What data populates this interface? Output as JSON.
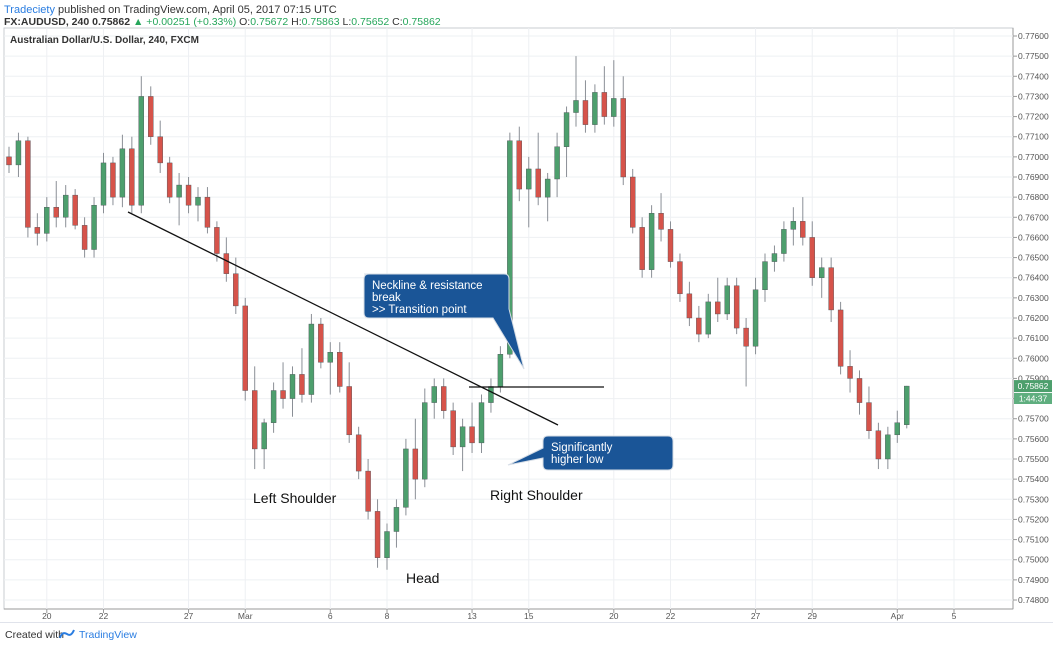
{
  "header": {
    "author": "Tradeciety",
    "published_text": "published on TradingView.com, April 05, 2017 07:15 UTC",
    "symbol": "FX:AUDUSD, 240",
    "last_price": "0.75862",
    "change": "▲ +0.00251 (+0.33%)",
    "ohlc": [
      {
        "label": "O:",
        "value": "0.75672"
      },
      {
        "label": "H:",
        "value": "0.75863"
      },
      {
        "label": "L:",
        "value": "0.75652"
      },
      {
        "label": "C:",
        "value": "0.75862"
      }
    ]
  },
  "footer": {
    "created_with": "Created with",
    "brand": "TradingView"
  },
  "colors": {
    "bull": "#4d9f6d",
    "bear": "#d6534a",
    "callout": "#1a5597",
    "grid": "#eef0f3",
    "axis": "#555555",
    "price_tag": "#4d9f6d"
  },
  "chart_data": {
    "type": "candlestick",
    "title": "Australian Dollar/U.S. Dollar, 240, FXCM",
    "ylim": [
      0.7475,
      0.7765
    ],
    "y_ticks": [
      "0.77600",
      "0.77500",
      "0.77400",
      "0.77300",
      "0.77200",
      "0.77100",
      "0.77000",
      "0.76900",
      "0.76800",
      "0.76700",
      "0.76600",
      "0.76500",
      "0.76400",
      "0.76300",
      "0.76200",
      "0.76100",
      "0.76000",
      "0.75900",
      "0.75800",
      "0.75700",
      "0.75600",
      "0.75500",
      "0.75400",
      "0.75300",
      "0.75200",
      "0.75100",
      "0.75000",
      "0.74900",
      "0.74800"
    ],
    "x_ticks": [
      {
        "label": "20",
        "index": 4
      },
      {
        "label": "22",
        "index": 10
      },
      {
        "label": "27",
        "index": 19
      },
      {
        "label": "Mar",
        "index": 25
      },
      {
        "label": "6",
        "index": 34
      },
      {
        "label": "8",
        "index": 40
      },
      {
        "label": "13",
        "index": 49
      },
      {
        "label": "15",
        "index": 55
      },
      {
        "label": "20",
        "index": 64
      },
      {
        "label": "22",
        "index": 70
      },
      {
        "label": "27",
        "index": 79
      },
      {
        "label": "29",
        "index": 85
      },
      {
        "label": "Apr",
        "index": 94
      },
      {
        "label": "5",
        "index": 100
      }
    ],
    "last_price_tag": "0.75862",
    "countdown_tag": "1:44:37",
    "candles": [
      [
        0.77,
        0.7705,
        0.7692,
        0.7696
      ],
      [
        0.7696,
        0.7712,
        0.769,
        0.7708
      ],
      [
        0.7708,
        0.771,
        0.766,
        0.7665
      ],
      [
        0.7665,
        0.7672,
        0.7656,
        0.7662
      ],
      [
        0.7662,
        0.768,
        0.7658,
        0.7675
      ],
      [
        0.7675,
        0.7688,
        0.7665,
        0.767
      ],
      [
        0.767,
        0.7686,
        0.7665,
        0.7681
      ],
      [
        0.7681,
        0.7684,
        0.7664,
        0.7666
      ],
      [
        0.7666,
        0.767,
        0.765,
        0.7654
      ],
      [
        0.7654,
        0.768,
        0.765,
        0.7676
      ],
      [
        0.7676,
        0.7702,
        0.7672,
        0.7697
      ],
      [
        0.7697,
        0.77,
        0.7676,
        0.768
      ],
      [
        0.768,
        0.7711,
        0.7675,
        0.7704
      ],
      [
        0.7704,
        0.771,
        0.7672,
        0.7676
      ],
      [
        0.7676,
        0.774,
        0.7672,
        0.773
      ],
      [
        0.773,
        0.7735,
        0.7706,
        0.771
      ],
      [
        0.771,
        0.7718,
        0.7692,
        0.7697
      ],
      [
        0.7697,
        0.77,
        0.7677,
        0.768
      ],
      [
        0.768,
        0.7692,
        0.7666,
        0.7686
      ],
      [
        0.7686,
        0.769,
        0.7672,
        0.7676
      ],
      [
        0.7676,
        0.7685,
        0.7668,
        0.768
      ],
      [
        0.768,
        0.7685,
        0.7662,
        0.7665
      ],
      [
        0.7665,
        0.7668,
        0.7648,
        0.7652
      ],
      [
        0.7652,
        0.766,
        0.7638,
        0.7642
      ],
      [
        0.7642,
        0.765,
        0.7622,
        0.7626
      ],
      [
        0.7626,
        0.763,
        0.7579,
        0.7584
      ],
      [
        0.7584,
        0.7596,
        0.7545,
        0.7555
      ],
      [
        0.7555,
        0.757,
        0.7545,
        0.7568
      ],
      [
        0.7568,
        0.7588,
        0.7563,
        0.7584
      ],
      [
        0.7584,
        0.7598,
        0.7575,
        0.758
      ],
      [
        0.758,
        0.7596,
        0.7571,
        0.7592
      ],
      [
        0.7592,
        0.7605,
        0.7578,
        0.7582
      ],
      [
        0.7582,
        0.7622,
        0.7578,
        0.7617
      ],
      [
        0.7617,
        0.762,
        0.7595,
        0.7598
      ],
      [
        0.7598,
        0.7608,
        0.7582,
        0.7603
      ],
      [
        0.7603,
        0.7608,
        0.7583,
        0.7586
      ],
      [
        0.7586,
        0.7598,
        0.7558,
        0.7562
      ],
      [
        0.7562,
        0.7566,
        0.754,
        0.7544
      ],
      [
        0.7544,
        0.755,
        0.752,
        0.7524
      ],
      [
        0.7524,
        0.753,
        0.7496,
        0.7501
      ],
      [
        0.7501,
        0.7518,
        0.7495,
        0.7514
      ],
      [
        0.7514,
        0.753,
        0.7506,
        0.7526
      ],
      [
        0.7526,
        0.756,
        0.7522,
        0.7555
      ],
      [
        0.7555,
        0.757,
        0.753,
        0.754
      ],
      [
        0.754,
        0.7585,
        0.7536,
        0.7578
      ],
      [
        0.7578,
        0.759,
        0.757,
        0.7586
      ],
      [
        0.7586,
        0.759,
        0.757,
        0.7574
      ],
      [
        0.7574,
        0.7578,
        0.7552,
        0.7556
      ],
      [
        0.7556,
        0.757,
        0.7544,
        0.7566
      ],
      [
        0.7566,
        0.7578,
        0.7553,
        0.7558
      ],
      [
        0.7558,
        0.7582,
        0.7553,
        0.7578
      ],
      [
        0.7578,
        0.759,
        0.7573,
        0.7586
      ],
      [
        0.7586,
        0.7606,
        0.7583,
        0.7602
      ],
      [
        0.7602,
        0.7712,
        0.76,
        0.7708
      ],
      [
        0.7708,
        0.7715,
        0.7678,
        0.7684
      ],
      [
        0.7684,
        0.77,
        0.7665,
        0.7694
      ],
      [
        0.7694,
        0.7712,
        0.7676,
        0.768
      ],
      [
        0.768,
        0.7692,
        0.7668,
        0.7689
      ],
      [
        0.7689,
        0.7712,
        0.768,
        0.7705
      ],
      [
        0.7705,
        0.7725,
        0.769,
        0.7722
      ],
      [
        0.7722,
        0.775,
        0.7715,
        0.7728
      ],
      [
        0.7728,
        0.7738,
        0.7712,
        0.7716
      ],
      [
        0.7716,
        0.7736,
        0.7712,
        0.7732
      ],
      [
        0.7732,
        0.7745,
        0.7716,
        0.772
      ],
      [
        0.772,
        0.7748,
        0.7715,
        0.7729
      ],
      [
        0.7729,
        0.774,
        0.7686,
        0.769
      ],
      [
        0.769,
        0.7694,
        0.7662,
        0.7665
      ],
      [
        0.7665,
        0.767,
        0.764,
        0.7644
      ],
      [
        0.7644,
        0.7676,
        0.764,
        0.7672
      ],
      [
        0.7672,
        0.7682,
        0.7658,
        0.7664
      ],
      [
        0.7664,
        0.7668,
        0.7645,
        0.7648
      ],
      [
        0.7648,
        0.7652,
        0.7628,
        0.7632
      ],
      [
        0.7632,
        0.7638,
        0.7616,
        0.762
      ],
      [
        0.762,
        0.7626,
        0.7608,
        0.7612
      ],
      [
        0.7612,
        0.7632,
        0.761,
        0.7628
      ],
      [
        0.7628,
        0.764,
        0.7618,
        0.7622
      ],
      [
        0.7622,
        0.764,
        0.7619,
        0.7636
      ],
      [
        0.7636,
        0.764,
        0.7612,
        0.7615
      ],
      [
        0.7615,
        0.762,
        0.7586,
        0.7606
      ],
      [
        0.7606,
        0.764,
        0.7602,
        0.7634
      ],
      [
        0.7634,
        0.7652,
        0.7628,
        0.7648
      ],
      [
        0.7648,
        0.7656,
        0.7643,
        0.7652
      ],
      [
        0.7652,
        0.7668,
        0.7648,
        0.7664
      ],
      [
        0.7664,
        0.7675,
        0.7656,
        0.7668
      ],
      [
        0.7668,
        0.768,
        0.7656,
        0.766
      ],
      [
        0.766,
        0.7668,
        0.7636,
        0.764
      ],
      [
        0.764,
        0.765,
        0.763,
        0.7645
      ],
      [
        0.7645,
        0.765,
        0.7618,
        0.7624
      ],
      [
        0.7624,
        0.7628,
        0.7592,
        0.7596
      ],
      [
        0.7596,
        0.7604,
        0.7583,
        0.759
      ],
      [
        0.759,
        0.7594,
        0.7572,
        0.7578
      ],
      [
        0.7578,
        0.7586,
        0.756,
        0.7564
      ],
      [
        0.7564,
        0.7568,
        0.7545,
        0.755
      ],
      [
        0.755,
        0.7566,
        0.7545,
        0.7562
      ],
      [
        0.7562,
        0.7574,
        0.7558,
        0.7568
      ],
      [
        0.7567,
        0.75863,
        0.75652,
        0.75862
      ]
    ],
    "annotations": [
      {
        "text": "Left Shoulder"
      },
      {
        "text": "Head"
      },
      {
        "text": "Right Shoulder"
      },
      {
        "text_lines": [
          "Neckline & resistance",
          "break",
          ">> Transition point"
        ]
      },
      {
        "text_lines": [
          "Significantly",
          "higher low"
        ]
      }
    ]
  }
}
